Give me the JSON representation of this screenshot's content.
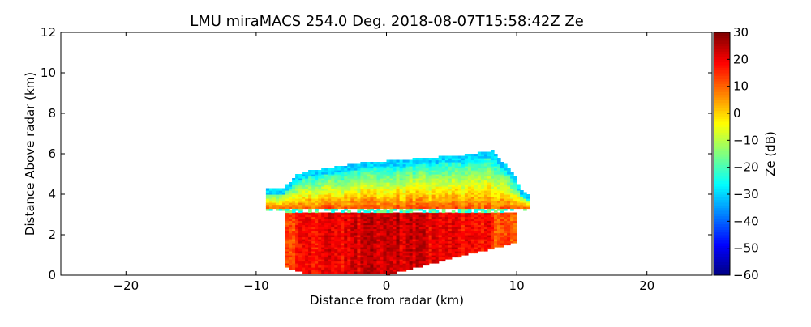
{
  "chart_data": {
    "type": "heatmap",
    "title": "LMU miraMACS 254.0 Deg. 2018-08-07T15:58:42Z  Ze",
    "xlabel": "Distance from radar (km)",
    "ylabel": "Distance Above radar  (km)",
    "xlim": [
      -25,
      25
    ],
    "ylim": [
      0,
      12
    ],
    "xticks": [
      -20,
      -10,
      0,
      10,
      20
    ],
    "yticks": [
      0,
      2,
      4,
      6,
      8,
      10,
      12
    ],
    "colorbar": {
      "label": "Ze (dB)",
      "range": [
        -60,
        30
      ],
      "ticks": [
        -60,
        -50,
        -40,
        -30,
        -20,
        -10,
        0,
        10,
        20,
        30
      ],
      "colormap": "jet"
    },
    "field": {
      "radar_origin": [
        0,
        0
      ],
      "echo_extent_x": [
        -10.5,
        11
      ],
      "anvil_top_profile": [
        [
          -9.5,
          3.2
        ],
        [
          -9.5,
          4.2
        ],
        [
          -8,
          4.3
        ],
        [
          -7,
          4.9
        ],
        [
          -6,
          5.1
        ],
        [
          -4,
          5.3
        ],
        [
          -2,
          5.5
        ],
        [
          0,
          5.6
        ],
        [
          2,
          5.7
        ],
        [
          4,
          5.8
        ],
        [
          6,
          5.9
        ],
        [
          8,
          6.1
        ],
        [
          9,
          5.4
        ],
        [
          9.8,
          4.8
        ],
        [
          10.2,
          4.2
        ],
        [
          11,
          3.8
        ],
        [
          11,
          3.2
        ]
      ],
      "melting_layer_km": 3.2,
      "rain_base_profile": [
        [
          -8,
          0.4
        ],
        [
          -6.5,
          0.1
        ],
        [
          0,
          0
        ],
        [
          10,
          1.6
        ]
      ],
      "peak_reflectivity_dB": 28
    },
    "grid": false,
    "legend": "none"
  }
}
